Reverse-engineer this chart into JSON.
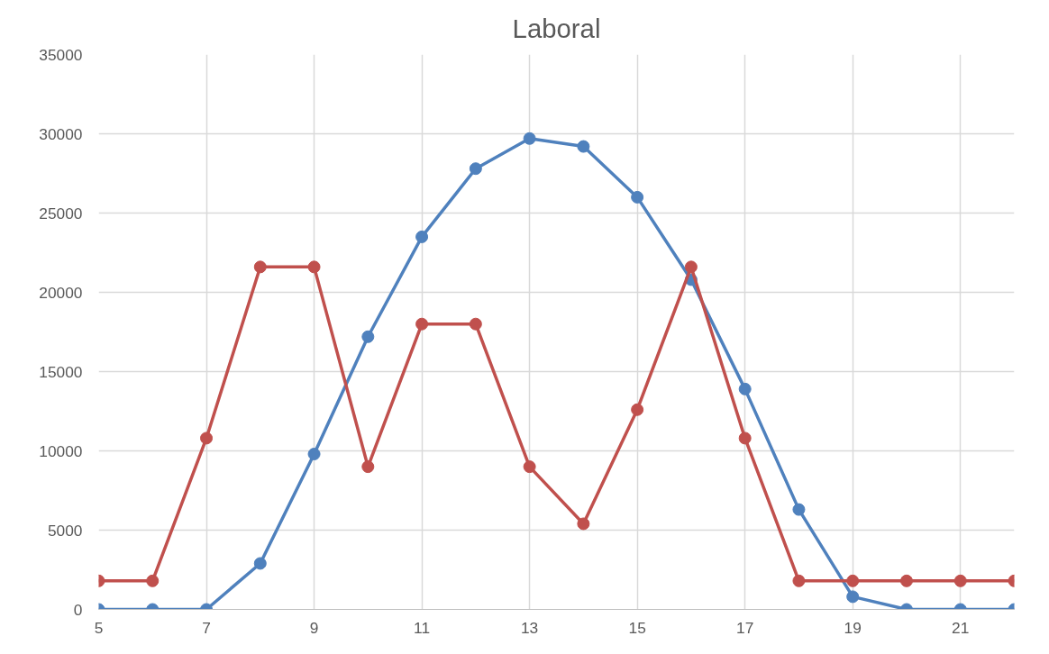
{
  "chart_data": {
    "type": "line",
    "title": "Laboral",
    "x": [
      5,
      6,
      7,
      8,
      9,
      10,
      11,
      12,
      13,
      14,
      15,
      16,
      17,
      18,
      19,
      20,
      21,
      22
    ],
    "series": [
      {
        "color": "#4f81bd",
        "values": [
          0,
          0,
          0,
          2900,
          9800,
          17200,
          23500,
          27800,
          29700,
          29200,
          26000,
          20800,
          13900,
          6300,
          800,
          0,
          0,
          0
        ]
      },
      {
        "color": "#c0504d",
        "values": [
          1800,
          1800,
          10800,
          21600,
          21600,
          9000,
          18000,
          18000,
          9000,
          5400,
          12600,
          21600,
          10800,
          1800,
          1800,
          1800,
          1800,
          1800
        ]
      }
    ],
    "xlim": [
      5,
      22
    ],
    "xticks": [
      5,
      7,
      9,
      11,
      13,
      15,
      17,
      19,
      21
    ],
    "ylim": [
      0,
      35000
    ],
    "yticks": [
      0,
      5000,
      10000,
      15000,
      20000,
      25000,
      30000,
      35000
    ],
    "grid": true,
    "marker": "circle"
  }
}
